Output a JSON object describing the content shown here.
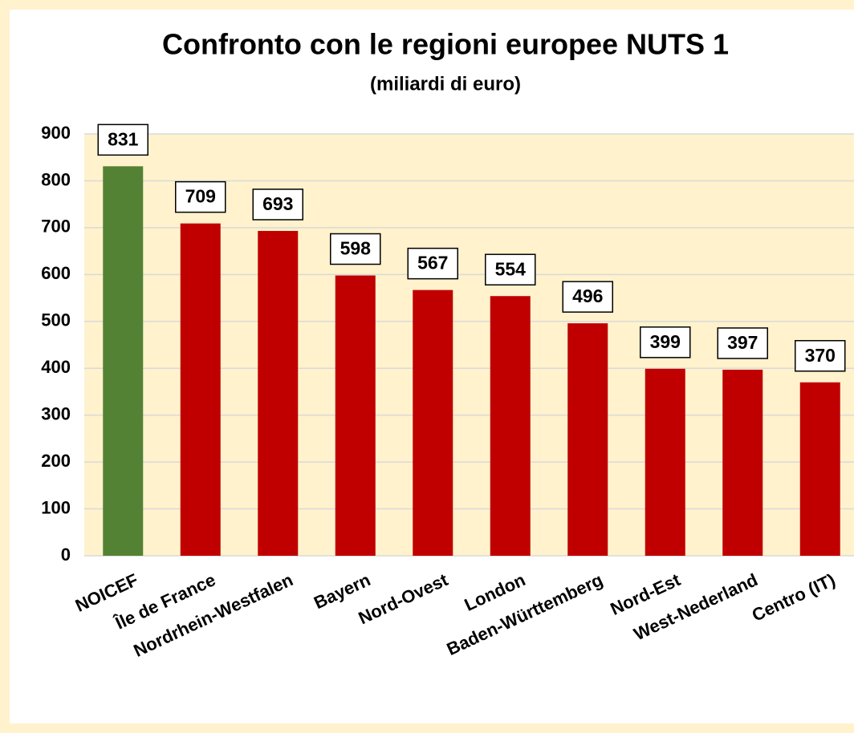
{
  "chart_data": {
    "type": "bar",
    "title": "Confronto con le regioni europee NUTS 1",
    "subtitle": "(miliardi di euro)",
    "categories": [
      "NOICEF",
      "Île de France",
      "Nordrhein-Westfalen",
      "Bayern",
      "Nord-Ovest",
      "London",
      "Baden-Württemberg",
      "Nord-Est",
      "West-Nederland",
      "Centro (IT)"
    ],
    "values": [
      831,
      709,
      693,
      598,
      567,
      554,
      496,
      399,
      397,
      370
    ],
    "colors": [
      "#548235",
      "#c00000",
      "#c00000",
      "#c00000",
      "#c00000",
      "#c00000",
      "#c00000",
      "#c00000",
      "#c00000",
      "#c00000"
    ],
    "ylim": [
      0,
      900
    ],
    "yticks": [
      0,
      100,
      200,
      300,
      400,
      500,
      600,
      700,
      800,
      900
    ],
    "grid": true
  }
}
